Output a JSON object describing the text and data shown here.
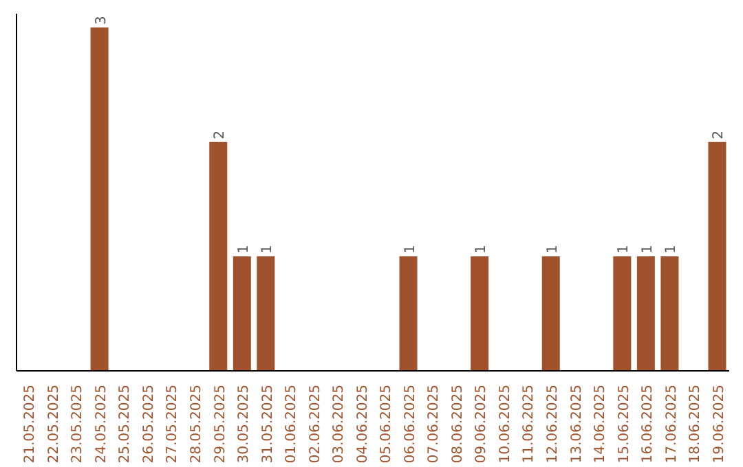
{
  "chart_data": {
    "type": "bar",
    "categories": [
      "21.05.2025",
      "22.05.2025",
      "23.05.2025",
      "24.05.2025",
      "25.05.2025",
      "26.05.2025",
      "27.05.2025",
      "28.05.2025",
      "29.05.2025",
      "30.05.2025",
      "31.05.2025",
      "01.06.2025",
      "02.06.2025",
      "03.06.2025",
      "04.06.2025",
      "05.06.2025",
      "06.06.2025",
      "07.06.2025",
      "08.06.2025",
      "09.06.2025",
      "10.06.2025",
      "11.06.2025",
      "12.06.2025",
      "13.06.2025",
      "14.06.2025",
      "15.06.2025",
      "16.06.2025",
      "17.06.2025",
      "18.06.2025",
      "19.06.2025"
    ],
    "values": [
      0,
      0,
      0,
      3,
      0,
      0,
      0,
      0,
      2,
      1,
      1,
      0,
      0,
      0,
      0,
      0,
      1,
      0,
      0,
      1,
      0,
      0,
      1,
      0,
      0,
      1,
      1,
      1,
      0,
      2
    ],
    "value_labels": [
      null,
      null,
      null,
      "3",
      null,
      null,
      null,
      null,
      "2",
      "1",
      "1",
      null,
      null,
      null,
      null,
      null,
      "1",
      null,
      null,
      "1",
      null,
      null,
      "1",
      null,
      null,
      "1",
      "1",
      "1",
      null,
      "2"
    ],
    "color": "#a0522d",
    "grid": false,
    "legend": false,
    "tick_labels": "x"
  }
}
